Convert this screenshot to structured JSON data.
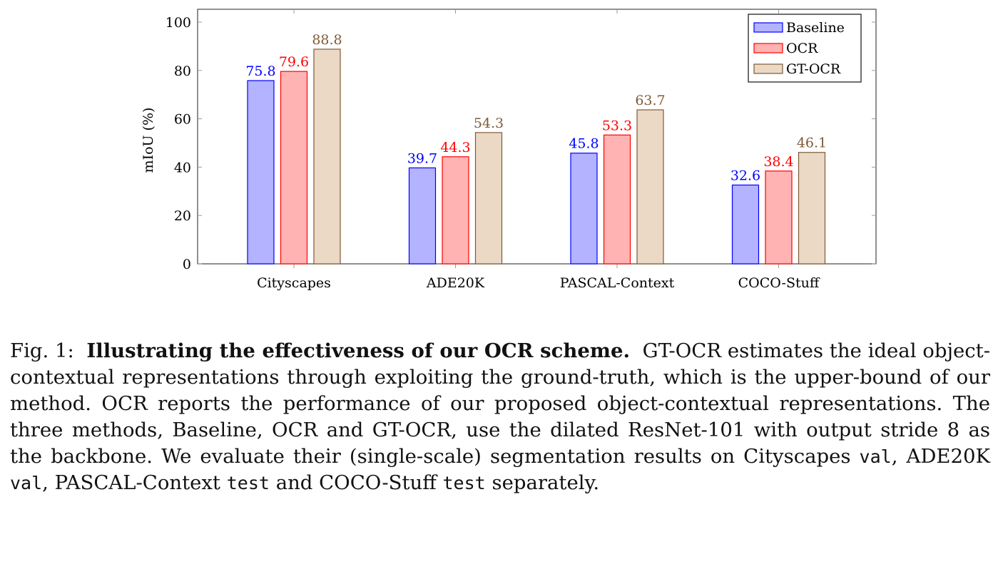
{
  "chart_data": {
    "type": "bar",
    "categories": [
      "Cityscapes",
      "ADE20K",
      "PASCAL-Context",
      "COCO-Stuff"
    ],
    "series": [
      {
        "name": "Baseline",
        "values": [
          75.8,
          39.7,
          45.8,
          32.6
        ],
        "fill": "#b3b3ff",
        "stroke": "#0000ff",
        "label_color": "#0000ff"
      },
      {
        "name": "OCR",
        "values": [
          79.6,
          44.3,
          53.3,
          38.4
        ],
        "fill": "#ffb3b3",
        "stroke": "#ff0000",
        "label_color": "#ff0000"
      },
      {
        "name": "GT-OCR",
        "values": [
          88.8,
          54.3,
          63.7,
          46.1
        ],
        "fill": "#ebd9c6",
        "stroke": "#7f5a35",
        "label_color": "#7f5a35"
      }
    ],
    "xlabel": "",
    "ylabel": "mIoU (%)",
    "ylim": [
      0,
      105
    ],
    "yticks": [
      0,
      20,
      40,
      60,
      80,
      100
    ],
    "grid": false,
    "legend": "top-right",
    "data_labels": true
  },
  "caption": {
    "label": "Fig. 1:",
    "title": "Illustrating the effectiveness of our OCR scheme.",
    "text1": "GT-OCR estimates the ideal object-contextual representations through exploiting the ground-truth, which is the upper-bound of our method. OCR reports the performance of our proposed object-contextual representations. The three methods, Baseline, OCR and GT-OCR, use the dilated ResNet-101 with output stride 8 as the backbone. We evaluate their (single-scale) segmentation results on Cityscapes",
    "code1": "val",
    "text2": ", ADE20K",
    "code2": "val",
    "text3": ", PASCAL-Context",
    "code3": "test",
    "text4": "and COCO-Stuff",
    "code4": "test",
    "text5": "separately."
  }
}
